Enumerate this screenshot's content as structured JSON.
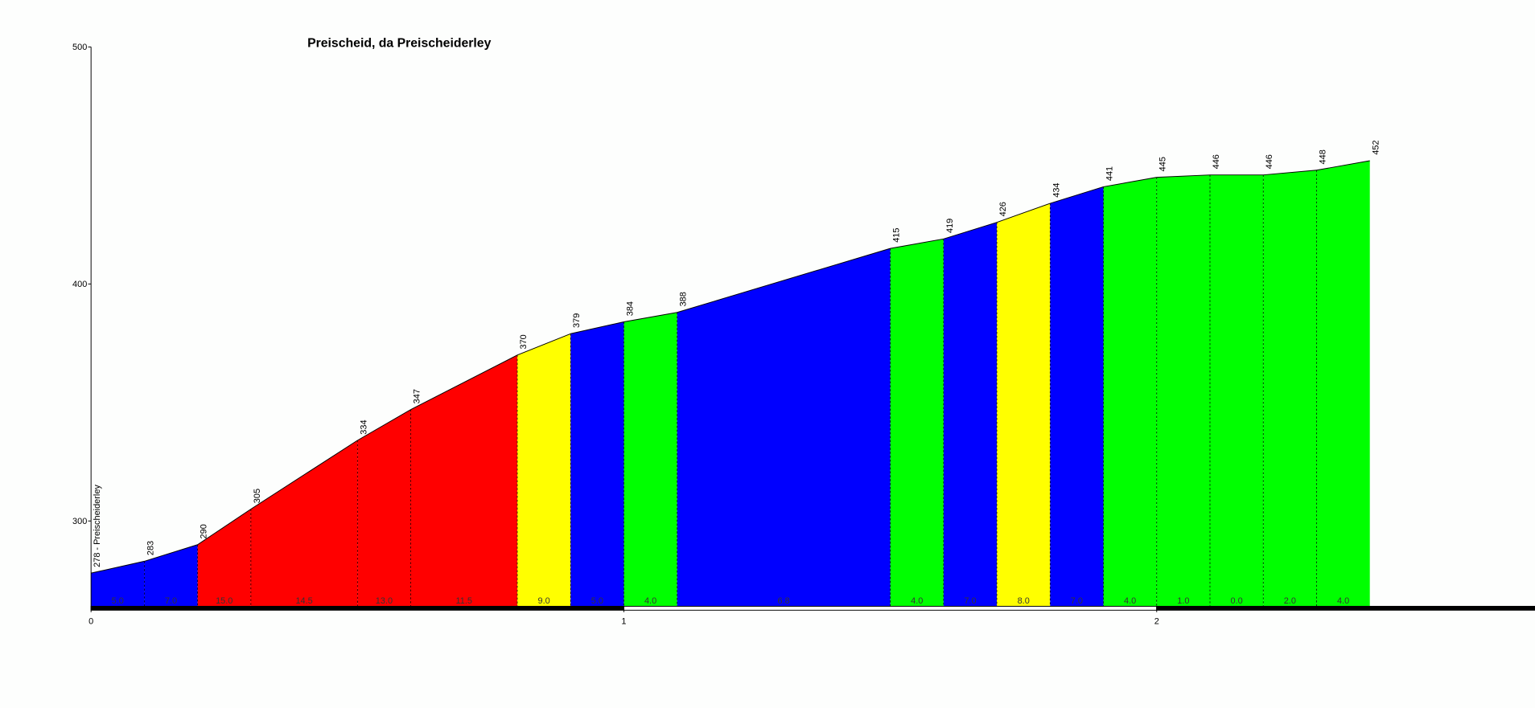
{
  "chart_data": {
    "type": "area",
    "title": "Preischeid, da Preischeiderley",
    "x": [
      0,
      0.1,
      0.2,
      0.3,
      0.5,
      0.6,
      0.8,
      0.9,
      1.0,
      1.1,
      1.5,
      1.6,
      1.7,
      1.8,
      1.9,
      2.0,
      2.1,
      2.2,
      2.3,
      2.4
    ],
    "values": [
      278,
      283,
      290,
      305,
      334,
      347,
      370,
      379,
      384,
      388,
      415,
      419,
      426,
      434,
      441,
      445,
      446,
      446,
      448,
      452
    ],
    "value_labels": [
      "278 - Preischeiderley",
      "283",
      "290",
      "305",
      "334",
      "347",
      "370",
      "379",
      "384",
      "388",
      "415",
      "419",
      "426",
      "434",
      "441",
      "445",
      "446",
      "446",
      "448",
      "452"
    ],
    "segment_labels": [
      "5.0",
      "7.0",
      "15.0",
      "14.5",
      "13.0",
      "11.5",
      "9.0",
      "5.0",
      "4.0",
      "6.8",
      "4.0",
      "7.0",
      "8.0",
      "7.0",
      "4.0",
      "1.0",
      "0.0",
      "2.0",
      "4.0"
    ],
    "segment_colors": [
      "#0000ff",
      "#0000ff",
      "#ff0000",
      "#ff0000",
      "#ff0000",
      "#ff0000",
      "#ffff00",
      "#0000ff",
      "#00ff00",
      "#0000ff",
      "#00ff00",
      "#0000ff",
      "#ffff00",
      "#0000ff",
      "#00ff00",
      "#00ff00",
      "#00ff00",
      "#00ff00",
      "#00ff00"
    ],
    "xlim": [
      0,
      2.71
    ],
    "xticks": [
      0,
      1,
      2
    ],
    "ylim": [
      264,
      500
    ],
    "yticks": [
      300,
      400,
      500
    ]
  }
}
